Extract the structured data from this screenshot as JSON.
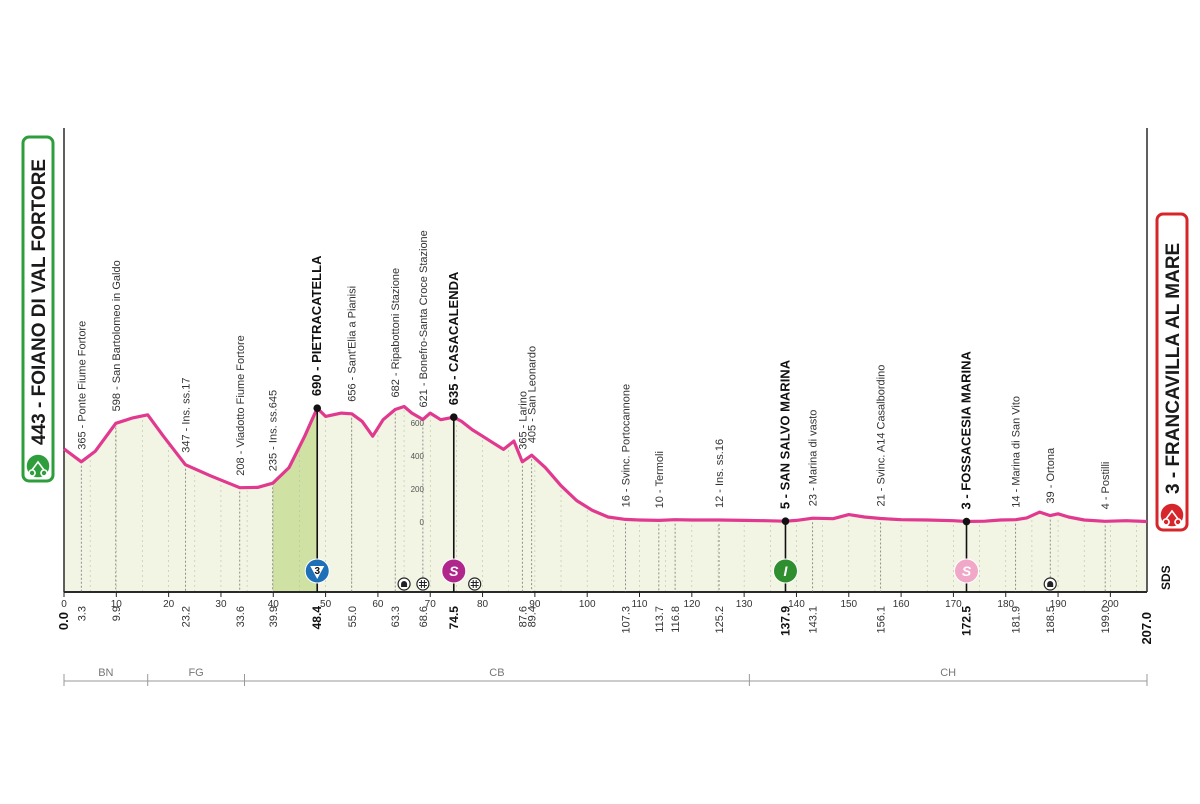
{
  "start": {
    "label": "443 - FOIANO DI VAL FORTORE",
    "color": "#2e9e3c"
  },
  "finish": {
    "label": "3 - FRANCAVILLA AL MARE",
    "color": "#d7262b"
  },
  "side_label": "SDS",
  "colors": {
    "profile": "#e0398f",
    "fill": "#f2f5e3",
    "climb": "#cfe1a3",
    "border": "#2a2a2a"
  },
  "chart_data": {
    "type": "area",
    "xlim": [
      0,
      207
    ],
    "x_ticks": [
      "0",
      "10",
      "20",
      "30",
      "40",
      "50",
      "60",
      "70",
      "80",
      "90",
      "100",
      "110",
      "120",
      "130",
      "140",
      "150",
      "160",
      "170",
      "180",
      "190",
      "200"
    ],
    "altitude_scale": [
      "600",
      "400",
      "200",
      "0"
    ],
    "profile": [
      [
        0,
        443
      ],
      [
        3.3,
        365
      ],
      [
        6,
        430
      ],
      [
        9.9,
        598
      ],
      [
        13,
        630
      ],
      [
        16,
        650
      ],
      [
        19,
        520
      ],
      [
        23.2,
        347
      ],
      [
        28,
        280
      ],
      [
        33.6,
        208
      ],
      [
        37,
        210
      ],
      [
        39.9,
        235
      ],
      [
        43,
        330
      ],
      [
        46,
        520
      ],
      [
        48.4,
        690
      ],
      [
        50,
        640
      ],
      [
        53,
        660
      ],
      [
        55,
        656
      ],
      [
        57,
        610
      ],
      [
        59,
        520
      ],
      [
        61,
        620
      ],
      [
        63.3,
        682
      ],
      [
        65,
        700
      ],
      [
        66.5,
        660
      ],
      [
        68.6,
        621
      ],
      [
        70,
        660
      ],
      [
        72,
        620
      ],
      [
        74.5,
        635
      ],
      [
        76,
        610
      ],
      [
        78,
        560
      ],
      [
        80,
        520
      ],
      [
        82,
        480
      ],
      [
        84,
        440
      ],
      [
        86,
        490
      ],
      [
        87.6,
        365
      ],
      [
        89.4,
        405
      ],
      [
        92,
        330
      ],
      [
        95,
        220
      ],
      [
        98,
        130
      ],
      [
        101,
        70
      ],
      [
        104,
        30
      ],
      [
        107.3,
        16
      ],
      [
        110,
        12
      ],
      [
        113.7,
        10
      ],
      [
        116.8,
        14
      ],
      [
        120,
        12
      ],
      [
        125.2,
        12
      ],
      [
        130,
        10
      ],
      [
        134,
        8
      ],
      [
        137.9,
        5
      ],
      [
        140,
        10
      ],
      [
        143.1,
        23
      ],
      [
        147,
        20
      ],
      [
        150,
        45
      ],
      [
        153,
        30
      ],
      [
        156.1,
        21
      ],
      [
        160,
        14
      ],
      [
        165,
        12
      ],
      [
        170,
        8
      ],
      [
        172.5,
        3
      ],
      [
        176,
        5
      ],
      [
        179,
        12
      ],
      [
        181.9,
        14
      ],
      [
        184,
        25
      ],
      [
        186.5,
        60
      ],
      [
        188.5,
        39
      ],
      [
        190,
        50
      ],
      [
        192,
        30
      ],
      [
        195,
        12
      ],
      [
        199,
        4
      ],
      [
        203,
        8
      ],
      [
        207,
        3
      ]
    ],
    "climb": {
      "x0": 39.9,
      "x1": 48.4
    },
    "locations": [
      {
        "km": 3.3,
        "km_label": "3.3",
        "label": "365 - Ponte Fiume Fortore"
      },
      {
        "km": 9.9,
        "km_label": "9.9",
        "label": "598 - San Bartolomeo in Galdo"
      },
      {
        "km": 23.2,
        "km_label": "23.2",
        "label": "347 - Ins. ss.17"
      },
      {
        "km": 33.6,
        "km_label": "33.6",
        "label": "208 - Viadotto Fiume Fortore"
      },
      {
        "km": 39.9,
        "km_label": "39.9",
        "label": "235 - Ins. ss.645"
      },
      {
        "km": 48.4,
        "km_label": "48.4",
        "label": "690 - PIETRACATELLA",
        "bold": true
      },
      {
        "km": 55.0,
        "km_label": "55.0",
        "label": "656 - Sant'Elia a Pianisi"
      },
      {
        "km": 63.3,
        "km_label": "63.3",
        "label": "682 - Ripabottoni Stazione"
      },
      {
        "km": 68.6,
        "km_label": "68.6",
        "label": "621 - Bonefro-Santa Croce Stazione"
      },
      {
        "km": 74.5,
        "km_label": "74.5",
        "label": "635 - CASACALENDA",
        "bold": true
      },
      {
        "km": 87.6,
        "km_label": "87.6",
        "label": "365 - Larino"
      },
      {
        "km": 89.4,
        "km_label": "89.4",
        "label": "405 - San Leonardo"
      },
      {
        "km": 107.3,
        "km_label": "107.3",
        "label": "16 - Svinc. Portocannone"
      },
      {
        "km": 113.7,
        "km_label": "113.7",
        "label": "10 - Termoli"
      },
      {
        "km": 116.8,
        "km_label": "116.8",
        "label": ""
      },
      {
        "km": 125.2,
        "km_label": "125.2",
        "label": "12 - Ins. ss.16"
      },
      {
        "km": 137.9,
        "km_label": "137.9",
        "label": "5 - SAN SALVO MARINA",
        "bold": true
      },
      {
        "km": 143.1,
        "km_label": "143.1",
        "label": "23 - Marina di vasto"
      },
      {
        "km": 156.1,
        "km_label": "156.1",
        "label": "21 - Svinc. A14 Casalbordino"
      },
      {
        "km": 172.5,
        "km_label": "172.5",
        "label": "3 - FOSSACESIA MARINA",
        "bold": true
      },
      {
        "km": 181.9,
        "km_label": "181.9",
        "label": "14 - Marina di San Vito"
      },
      {
        "km": 188.5,
        "km_label": "188.5",
        "label": "39 - Ortona"
      },
      {
        "km": 199.0,
        "km_label": "199.0",
        "label": "4 - Postilli"
      }
    ],
    "end_km": {
      "start": "0.0",
      "finish": "207.0"
    },
    "markers": [
      {
        "km": 48.4,
        "type": "gpm",
        "text": "3",
        "color": "#1f6fb8"
      },
      {
        "km": 74.5,
        "type": "sprint",
        "text": "S",
        "color": "#b0268a"
      },
      {
        "km": 137.9,
        "type": "intergiro",
        "text": "I",
        "color": "#2f8f2f"
      },
      {
        "km": 172.5,
        "type": "sprint",
        "text": "S",
        "color": "#f1a7c7"
      }
    ],
    "tunnels": [
      65,
      188.5
    ],
    "railways": [
      68.6,
      78.5
    ],
    "regions": [
      {
        "label": "BN",
        "from": 0,
        "to": 16
      },
      {
        "label": "FG",
        "from": 16,
        "to": 34.5
      },
      {
        "label": "CB",
        "from": 34.5,
        "to": 131
      },
      {
        "label": "CH",
        "from": 131,
        "to": 207
      }
    ]
  }
}
